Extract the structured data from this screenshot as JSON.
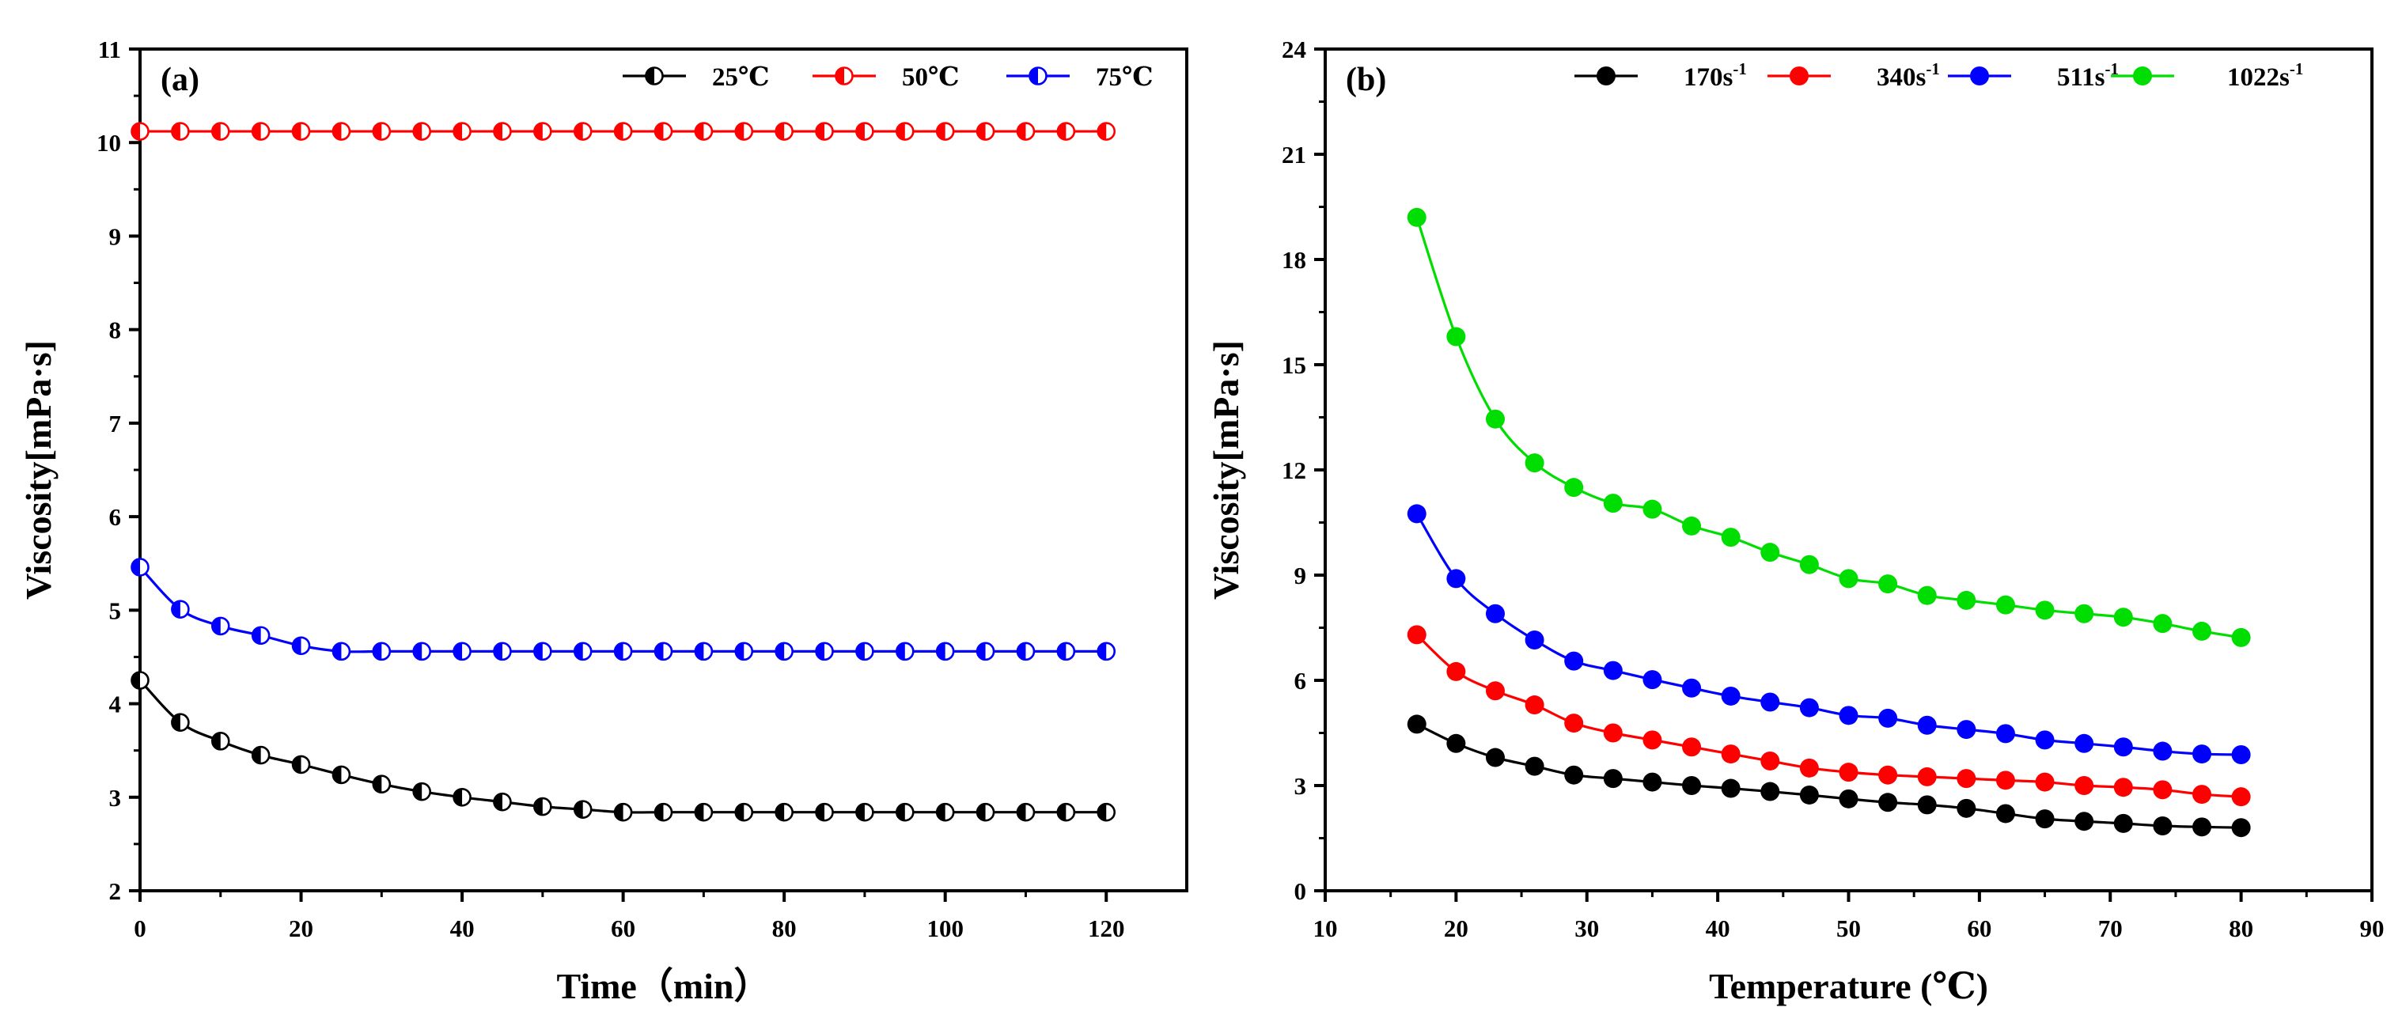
{
  "chart_data": [
    {
      "type": "line",
      "panel_label": "(a)",
      "xlabel": "Time（min）",
      "ylabel": "Viscosity[mPa·s]",
      "xlim": [
        0,
        130
      ],
      "ylim": [
        2,
        11
      ],
      "xticks": [
        0,
        20,
        40,
        60,
        80,
        100,
        120
      ],
      "yticks": [
        2,
        3,
        4,
        5,
        6,
        7,
        8,
        9,
        10,
        11
      ],
      "legend_position": "top-right",
      "marker": "half-filled circle",
      "x": [
        0,
        5,
        10,
        15,
        20,
        25,
        30,
        35,
        40,
        45,
        50,
        55,
        60,
        65,
        70,
        75,
        80,
        85,
        90,
        95,
        100,
        105,
        110,
        115,
        120
      ],
      "series": [
        {
          "name": "25℃",
          "color": "#000000",
          "values": [
            4.25,
            3.8,
            3.6,
            3.45,
            3.35,
            3.24,
            3.14,
            3.06,
            3.0,
            2.95,
            2.9,
            2.87,
            2.84,
            2.84,
            2.84,
            2.84,
            2.84,
            2.84,
            2.84,
            2.84,
            2.84,
            2.84,
            2.84,
            2.84,
            2.84
          ]
        },
        {
          "name": "50℃",
          "color": "#ff0000",
          "values": [
            10.12,
            10.12,
            10.12,
            10.12,
            10.12,
            10.12,
            10.12,
            10.12,
            10.12,
            10.12,
            10.12,
            10.12,
            10.12,
            10.12,
            10.12,
            10.12,
            10.12,
            10.12,
            10.12,
            10.12,
            10.12,
            10.12,
            10.12,
            10.12,
            10.12
          ]
        },
        {
          "name": "75℃",
          "color": "#0000ff",
          "values": [
            5.46,
            5.01,
            4.83,
            4.73,
            4.62,
            4.56,
            4.56,
            4.56,
            4.56,
            4.56,
            4.56,
            4.56,
            4.56,
            4.56,
            4.56,
            4.56,
            4.56,
            4.56,
            4.56,
            4.56,
            4.56,
            4.56,
            4.56,
            4.56,
            4.56
          ]
        }
      ]
    },
    {
      "type": "line",
      "panel_label": "(b)",
      "xlabel": "Temperature (℃)",
      "ylabel": "Viscosity[mPa·s]",
      "xlim": [
        10,
        90
      ],
      "ylim": [
        0,
        24
      ],
      "xticks": [
        10,
        20,
        30,
        40,
        50,
        60,
        70,
        80,
        90
      ],
      "yticks": [
        0,
        3,
        6,
        9,
        12,
        15,
        18,
        21,
        24
      ],
      "legend_position": "top-right",
      "marker": "filled circle",
      "x": [
        17,
        20,
        23,
        26,
        29,
        32,
        35,
        38,
        41,
        44,
        47,
        50,
        53,
        56,
        59,
        62,
        65,
        68,
        71,
        74,
        77,
        80
      ],
      "series": [
        {
          "name": "170s",
          "unit_sup": "-1",
          "color": "#000000",
          "values": [
            4.75,
            4.2,
            3.8,
            3.55,
            3.3,
            3.2,
            3.1,
            3.0,
            2.92,
            2.83,
            2.73,
            2.62,
            2.52,
            2.45,
            2.35,
            2.2,
            2.05,
            1.98,
            1.92,
            1.85,
            1.82,
            1.8
          ]
        },
        {
          "name": "340s",
          "unit_sup": "-1",
          "color": "#ff0000",
          "values": [
            7.3,
            6.25,
            5.7,
            5.3,
            4.78,
            4.5,
            4.3,
            4.1,
            3.9,
            3.7,
            3.5,
            3.38,
            3.3,
            3.25,
            3.2,
            3.15,
            3.1,
            3.0,
            2.95,
            2.88,
            2.75,
            2.68
          ]
        },
        {
          "name": "511s",
          "unit_sup": "-1",
          "color": "#0000ff",
          "values": [
            10.75,
            8.9,
            7.9,
            7.15,
            6.55,
            6.28,
            6.02,
            5.78,
            5.55,
            5.38,
            5.22,
            5.0,
            4.92,
            4.72,
            4.6,
            4.48,
            4.3,
            4.2,
            4.1,
            3.98,
            3.9,
            3.88
          ]
        },
        {
          "name": "1022s",
          "unit_sup": "-1",
          "color": "#00dd00",
          "values": [
            19.2,
            15.8,
            13.45,
            12.2,
            11.5,
            11.05,
            10.88,
            10.4,
            10.08,
            9.65,
            9.3,
            8.9,
            8.75,
            8.42,
            8.28,
            8.15,
            8.0,
            7.9,
            7.8,
            7.62,
            7.4,
            7.22
          ]
        }
      ]
    }
  ]
}
